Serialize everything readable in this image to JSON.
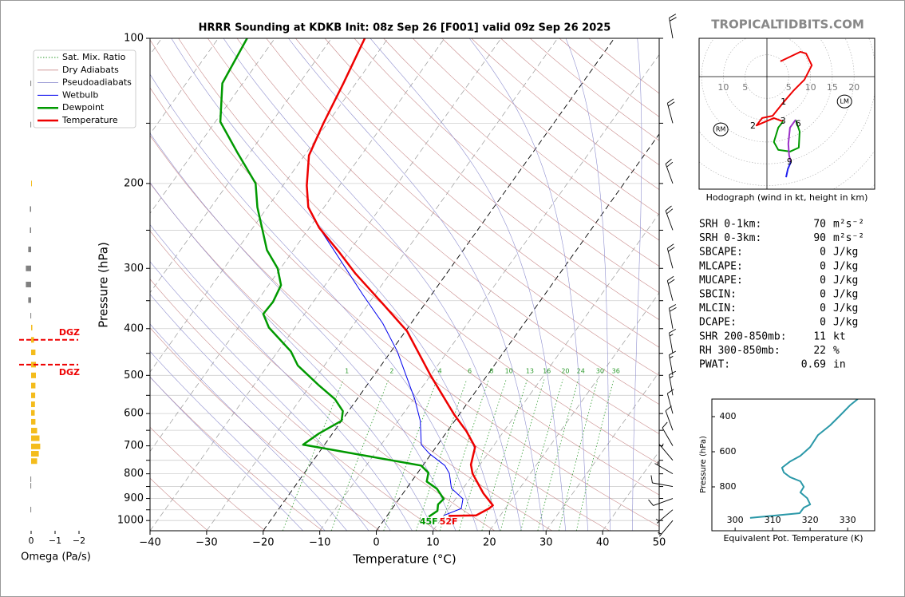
{
  "site": "TROPICALTIDBITS.COM",
  "chart_data": [
    {
      "type": "skewt",
      "title": "HRRR Sounding at KDKB Init: 08z Sep 26 [F001] valid 09z Sep 26 2025",
      "xlabel": "Temperature (°C)",
      "ylabel": "Pressure (hPa)",
      "xlim": [
        -40,
        50
      ],
      "xticks": [
        {
          "value": -40,
          "label": "−40"
        },
        {
          "value": -30,
          "label": "−30"
        },
        {
          "value": -20,
          "label": "−20"
        },
        {
          "value": -10,
          "label": "−10"
        },
        0,
        10,
        20,
        30,
        40,
        50
      ],
      "ylim": [
        1050,
        100
      ],
      "log_y": true,
      "yticks": [
        100,
        200,
        300,
        400,
        500,
        600,
        700,
        800,
        900,
        1000
      ],
      "yticks_minor": [
        150,
        250,
        350,
        450,
        550,
        650,
        750,
        850,
        950
      ],
      "grid": true,
      "background_lines": [
        {
          "name": "Sat. Mix. Ratio",
          "color": "#2e9b2e",
          "style": "dotted"
        },
        {
          "name": "Dry Adiabats",
          "color": "#c98b8b",
          "style": "solid"
        },
        {
          "name": "Pseudoadiabats",
          "color": "#8f8fcf",
          "style": "solid"
        }
      ],
      "mixing_ratios": [
        1,
        2,
        4,
        6,
        8,
        10,
        13,
        16,
        20,
        24,
        30,
        36
      ],
      "series": [
        {
          "name": "Wetbulb",
          "color": "#0000ee",
          "width": 1,
          "pressure": [
            976,
            944,
            902,
            857,
            799,
            769,
            726,
            696,
            621,
            560,
            446,
            390,
            341,
            277,
            247
          ],
          "values": [
            10,
            12.2,
            11.3,
            7.9,
            5.7,
            3.9,
            -0.4,
            -2.9,
            -6.1,
            -9.8,
            -18.9,
            -25,
            -32,
            -42.5,
            -48.3
          ]
        },
        {
          "name": "Dewpoint",
          "color": "#009900",
          "width": 2.5,
          "pressure": [
            982,
            955,
            926,
            902,
            859,
            830,
            796,
            769,
            696,
            660,
            621,
            593,
            560,
            525,
            477,
            446,
            398,
            373,
            352,
            325,
            300,
            275,
            224,
            200,
            173,
            149,
            124,
            100
          ],
          "values": [
            7.5,
            8.3,
            7.6,
            7.9,
            5.4,
            2.7,
            1.9,
            -0.3,
            -23.8,
            -22.4,
            -20,
            -21,
            -23.9,
            -28.4,
            -34.7,
            -37.7,
            -44.6,
            -47.3,
            -47.1,
            -47.8,
            -50.5,
            -54.7,
            -61.8,
            -65.1,
            -72.1,
            -79.1,
            -83.6,
            -84.9
          ]
        },
        {
          "name": "Temperature",
          "color": "#ee0000",
          "width": 2.5,
          "pressure": [
            978,
            976,
            944,
            930,
            878,
            799,
            766,
            704,
            653,
            605,
            500,
            405,
            355,
            307,
            277,
            247,
            224,
            202,
            175,
            150,
            124,
            100
          ],
          "values": [
            10.9,
            15.7,
            17.1,
            17.4,
            14.2,
            9.8,
            8.4,
            6.9,
            3.4,
            -0.7,
            -10,
            -19.7,
            -27.5,
            -36.2,
            -41.8,
            -48.3,
            -52.8,
            -55.8,
            -59.2,
            -60.7,
            -62.2,
            -64.1
          ]
        }
      ],
      "surface_labels": [
        {
          "text": "45F",
          "color": "#009900"
        },
        {
          "text": "52F",
          "color": "#ee0000"
        }
      ],
      "winds": {
        "pressure": [
          1000,
          950,
          900,
          850,
          800,
          750,
          700,
          650,
          600,
          550,
          500,
          450,
          400,
          350,
          300,
          250,
          200,
          150,
          100
        ],
        "direction": [
          220,
          230,
          250,
          280,
          300,
          320,
          330,
          340,
          345,
          350,
          350,
          350,
          350,
          345,
          345,
          340,
          340,
          345,
          350
        ],
        "speed": [
          5,
          8,
          10,
          10,
          8,
          8,
          10,
          12,
          12,
          15,
          15,
          18,
          20,
          20,
          20,
          22,
          20,
          20,
          20
        ]
      }
    },
    {
      "type": "omega",
      "xlabel": "Omega (Pa/s)",
      "xlim": [
        0.6,
        -2.4
      ],
      "xticks": [
        0,
        {
          "value": -1,
          "label": "−1"
        },
        {
          "value": -2,
          "label": "−2"
        }
      ],
      "color_negative": "#f4bc1c",
      "color_positive": "#808080",
      "pressure": [
        124,
        151,
        200,
        226,
        250,
        274,
        300,
        324,
        349,
        376,
        398,
        422,
        448,
        475,
        500,
        525,
        550,
        574,
        598,
        624,
        651,
        675,
        702,
        727,
        753,
        821,
        847,
        949
      ],
      "values": [
        0.03,
        0.03,
        -0.03,
        0.05,
        0.05,
        0.12,
        0.22,
        0.22,
        0.12,
        0.03,
        -0.05,
        -0.12,
        -0.18,
        -0.2,
        -0.2,
        -0.18,
        -0.17,
        -0.16,
        -0.15,
        -0.18,
        -0.25,
        -0.35,
        -0.38,
        -0.32,
        -0.25,
        0.03,
        0.03,
        0.03
      ],
      "dgz": {
        "label": "DGZ",
        "color": "#ee0000",
        "pressures": [
          422,
          475
        ]
      }
    },
    {
      "type": "hodograph",
      "title": "Hodograph (wind in kt, height in km)",
      "ring_labels": [
        {
          "value": -10,
          "label": "10"
        },
        {
          "value": -5,
          "label": "5"
        },
        5,
        10,
        15,
        20
      ],
      "segments": [
        {
          "color": "#ee0000",
          "u": [
            3.1,
            7.7,
            9.0,
            10.3,
            8.6,
            6.2,
            3.8,
            1.3,
            -1.1,
            -2.4,
            1.6,
            3.7
          ],
          "v": [
            3.5,
            5.7,
            5.3,
            2.6,
            -0.7,
            -3.1,
            -5.9,
            -9.0,
            -9.5,
            -11.2,
            -9.5,
            -10.3
          ]
        },
        {
          "color": "#009900",
          "u": [
            3.7,
            2.6,
            1.6,
            2.6,
            5.3,
            7.3,
            7.5,
            6.6
          ],
          "v": [
            -10.3,
            -11.7,
            -15.0,
            -16.8,
            -17.2,
            -16.3,
            -12.6,
            -9.9
          ]
        },
        {
          "color": "#9b30c8",
          "u": [
            6.6,
            5.3,
            4.9,
            5.1,
            5.5
          ],
          "v": [
            -9.9,
            -11.7,
            -15.4,
            -18.1,
            -19.6
          ]
        },
        {
          "color": "#2020ee",
          "u": [
            5.5,
            4.8,
            4.4
          ],
          "v": [
            -19.6,
            -21.2,
            -23.1
          ]
        }
      ],
      "height_labels": [
        {
          "height": 1,
          "u": 3.8,
          "v": -5.9
        },
        {
          "height": 2,
          "u": -3.2,
          "v": -11.4
        },
        {
          "height": 3,
          "u": 3.7,
          "v": -10.3
        },
        {
          "height": 6,
          "u": 7.2,
          "v": -10.9
        },
        {
          "height": 9,
          "u": 5.2,
          "v": -19.6
        }
      ],
      "storm_motion": [
        {
          "label": "RM",
          "u": -10.6,
          "v": -12.1
        },
        {
          "label": "LM",
          "u": 17.8,
          "v": -5.7
        }
      ]
    },
    {
      "type": "line",
      "xlabel": "Equivalent Pot. Temperature (K)",
      "ylabel": "Pressure (hPa)",
      "color": "#2a98a8",
      "xlim": [
        293.8,
        337.2
      ],
      "xticks": [
        300,
        310,
        320,
        330
      ],
      "ylim": [
        1050,
        300
      ],
      "yticks": [
        400,
        600,
        800
      ],
      "pressure": [
        977,
        950,
        918,
        900,
        864,
        832,
        800,
        768,
        745,
        718,
        691,
        655,
        623,
        573,
        505,
        450,
        391,
        336,
        300
      ],
      "values": [
        304.0,
        317.2,
        318.3,
        320.0,
        319.2,
        317.4,
        318.3,
        317.4,
        314.7,
        313.0,
        312.5,
        314.7,
        317.4,
        320.0,
        322.1,
        325.3,
        328.1,
        330.6,
        332.7
      ]
    }
  ],
  "indices": [
    {
      "label": "SRH 0-1km:",
      "value": 70,
      "unit": "m²s⁻²",
      "color": "#000000"
    },
    {
      "label": "SRH 0-3km:",
      "value": 90,
      "unit": "m²s⁻²",
      "color": "#000000"
    },
    {
      "label": "SBCAPE:",
      "value": 0,
      "unit": "J/kg",
      "color": "#000000"
    },
    {
      "label": "MLCAPE:",
      "value": 0,
      "unit": "J/kg",
      "color": "#000000"
    },
    {
      "label": "MUCAPE:",
      "value": 0,
      "unit": "J/kg",
      "color": "#000000"
    },
    {
      "label": "SBCIN:",
      "value": 0,
      "unit": "J/kg",
      "color": "#000000"
    },
    {
      "label": "MLCIN:",
      "value": 0,
      "unit": "J/kg",
      "color": "#000000"
    },
    {
      "label": "DCAPE:",
      "value": 0,
      "unit": "J/kg",
      "color": "#000000"
    },
    {
      "label": "SHR 200-850mb:",
      "value": 11,
      "unit": "kt",
      "color": "#c8541e"
    },
    {
      "label": "RH 300-850mb:",
      "value": 22,
      "unit": "%",
      "color": "#8b5a1a"
    },
    {
      "label": "PWAT:",
      "value": 0.69,
      "unit": "in",
      "color": "#000000"
    }
  ]
}
